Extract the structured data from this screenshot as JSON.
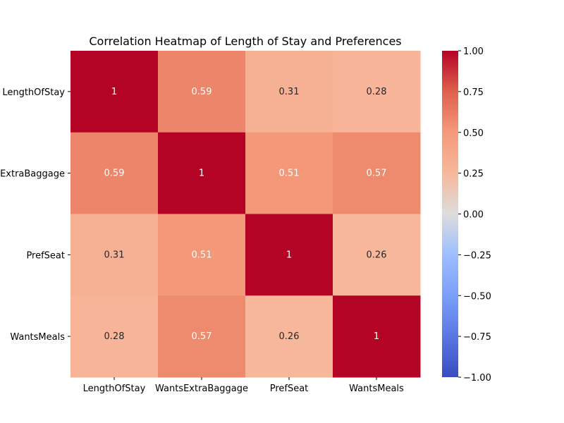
{
  "chart_data": {
    "type": "heatmap",
    "title": "Correlation Heatmap of Length of Stay and Preferences",
    "xlabel": "",
    "ylabel": "",
    "x_categories": [
      "LengthOfStay",
      "WantsExtraBaggage",
      "PrefSeat",
      "WantsMeals"
    ],
    "y_categories": [
      "LengthOfStay",
      "WantsExtraBaggage",
      "PrefSeat",
      "WantsMeals"
    ],
    "matrix": [
      [
        1,
        0.59,
        0.31,
        0.28
      ],
      [
        0.59,
        1,
        0.51,
        0.57
      ],
      [
        0.31,
        0.51,
        1,
        0.26
      ],
      [
        0.28,
        0.57,
        0.26,
        1
      ]
    ],
    "annotations": [
      [
        "1",
        "0.59",
        "0.31",
        "0.28"
      ],
      [
        "0.59",
        "1",
        "0.51",
        "0.57"
      ],
      [
        "0.31",
        "0.51",
        "1",
        "0.26"
      ],
      [
        "0.28",
        "0.57",
        "0.26",
        "1"
      ]
    ],
    "colormap": "coolwarm",
    "vmin": -1,
    "vmax": 1,
    "colorbar_ticks": [
      1.0,
      0.75,
      0.5,
      0.25,
      0.0,
      -0.25,
      -0.5,
      -0.75,
      -1.0
    ],
    "colorbar_tick_labels": [
      "1.00",
      "0.75",
      "0.50",
      "0.25",
      "0.00",
      "−0.25",
      "−0.50",
      "−0.75",
      "−1.00"
    ],
    "grid": false,
    "legend": "colorbar-right"
  }
}
